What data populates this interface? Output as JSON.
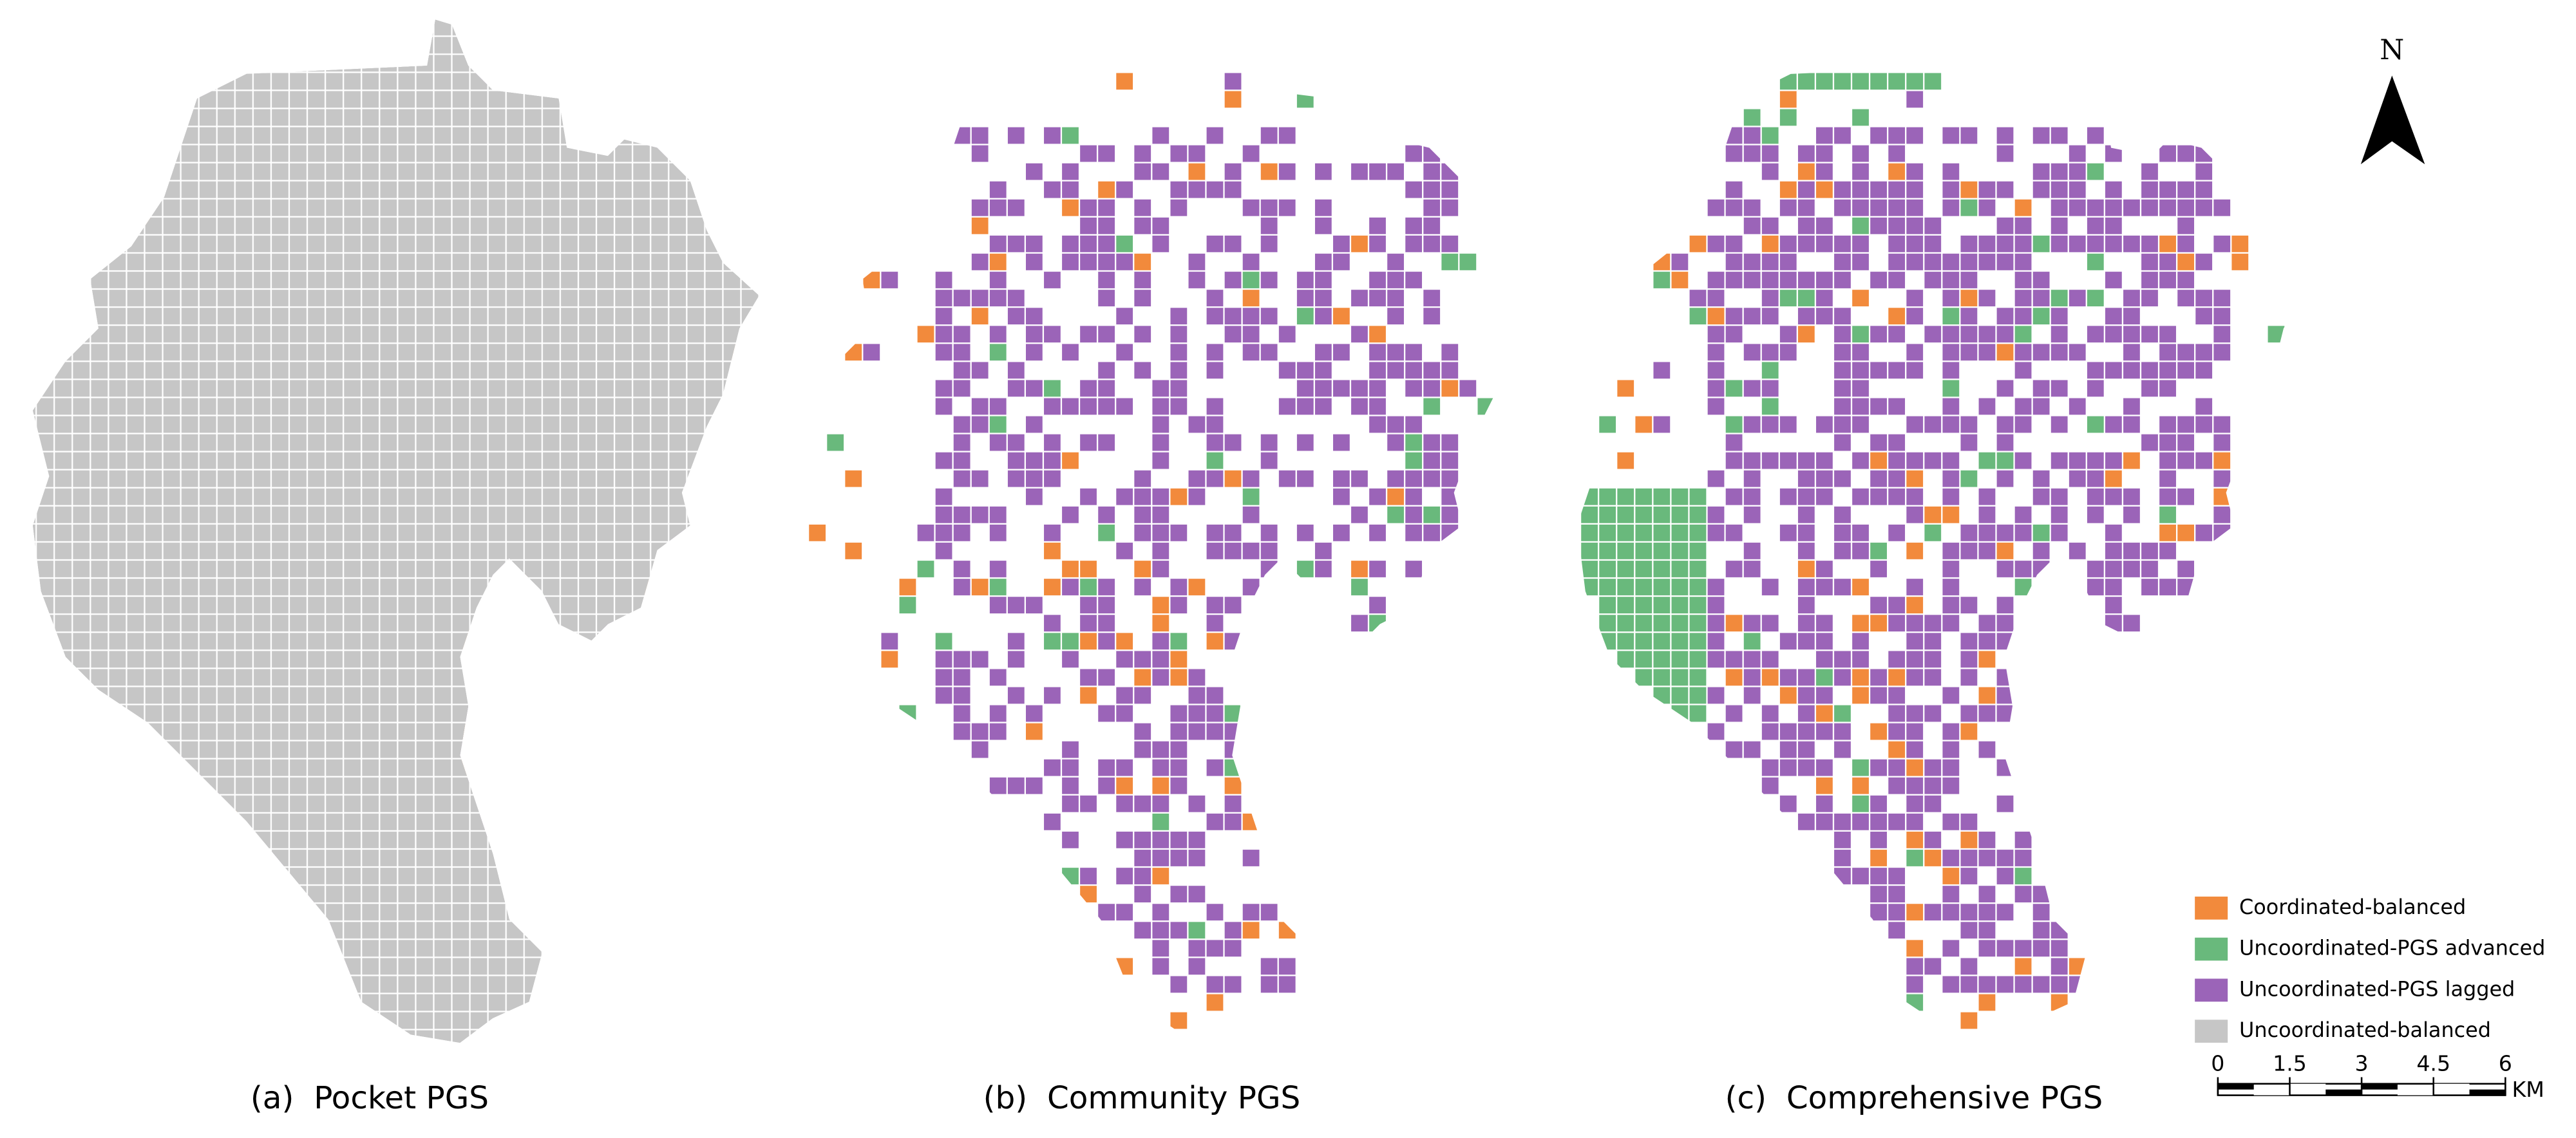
{
  "panels": [
    {
      "title": "(a)  Pocket PGS"
    },
    {
      "title": "(b)  Community PGS"
    },
    {
      "title": "(c)  Comprehensive PGS"
    }
  ],
  "legend": [
    {
      "label": "Coordinated-balanced",
      "color": "#f28a3c"
    },
    {
      "label": "Uncoordinated-PGS advanced",
      "color": "#69b97c"
    },
    {
      "label": "Uncoordinated-PGS lagged",
      "color": "#9b64b8"
    },
    {
      "label": "Uncoordinated-balanced",
      "color": "#c6c6c6"
    }
  ],
  "north": "N",
  "scale_bar": {
    "ticks": [
      0,
      1.5,
      3,
      4.5,
      6
    ],
    "unit": "KM"
  }
}
